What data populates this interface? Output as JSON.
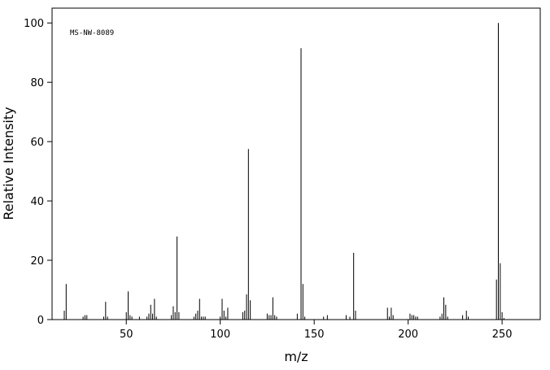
{
  "chart_data": {
    "type": "bar",
    "annotation": "MS-NW-8089",
    "x_label": "m/z",
    "y_label": "Relative Intensity",
    "x": [
      17,
      18,
      27,
      28,
      29,
      38,
      39,
      40,
      50,
      51,
      52,
      53,
      57,
      61,
      62,
      63,
      64,
      65,
      66,
      74,
      75,
      76,
      77,
      78,
      86,
      87,
      88,
      89,
      90,
      91,
      92,
      100,
      101,
      102,
      103,
      104,
      112,
      113,
      114,
      115,
      116,
      125,
      126,
      127,
      128,
      129,
      130,
      141,
      143,
      144,
      145,
      155,
      157,
      167,
      169,
      171,
      172,
      189,
      190,
      191,
      192,
      201,
      202,
      203,
      204,
      205,
      217,
      218,
      219,
      220,
      221,
      229,
      231,
      232,
      247,
      248,
      249,
      250,
      251
    ],
    "values": [
      3,
      12,
      1,
      1.5,
      1.5,
      1,
      6,
      1,
      2.5,
      9.5,
      1.5,
      1,
      1,
      1,
      2,
      5,
      2,
      7,
      1,
      1.5,
      4.5,
      2.5,
      28,
      2.5,
      1,
      2,
      3,
      7,
      1,
      1,
      1,
      1,
      7,
      3,
      1,
      4,
      2.5,
      3,
      8.5,
      57.5,
      6.5,
      2,
      1.5,
      1.5,
      7.5,
      1.5,
      1,
      2,
      91.5,
      12,
      1,
      1,
      1.5,
      1.5,
      1,
      22.5,
      3,
      4,
      1,
      4,
      1.5,
      2,
      1.5,
      1.5,
      1,
      1,
      1,
      2,
      7.5,
      5,
      1,
      1.5,
      3,
      1,
      13.5,
      100,
      19,
      2.5,
      0.5
    ],
    "color": "#000000",
    "xlim": [
      10.5,
      270.3
    ],
    "ylim": [
      0,
      105
    ],
    "xticks": [
      50,
      100,
      150,
      200,
      250
    ],
    "yticks": [
      0,
      20,
      40,
      60,
      80,
      100
    ]
  }
}
